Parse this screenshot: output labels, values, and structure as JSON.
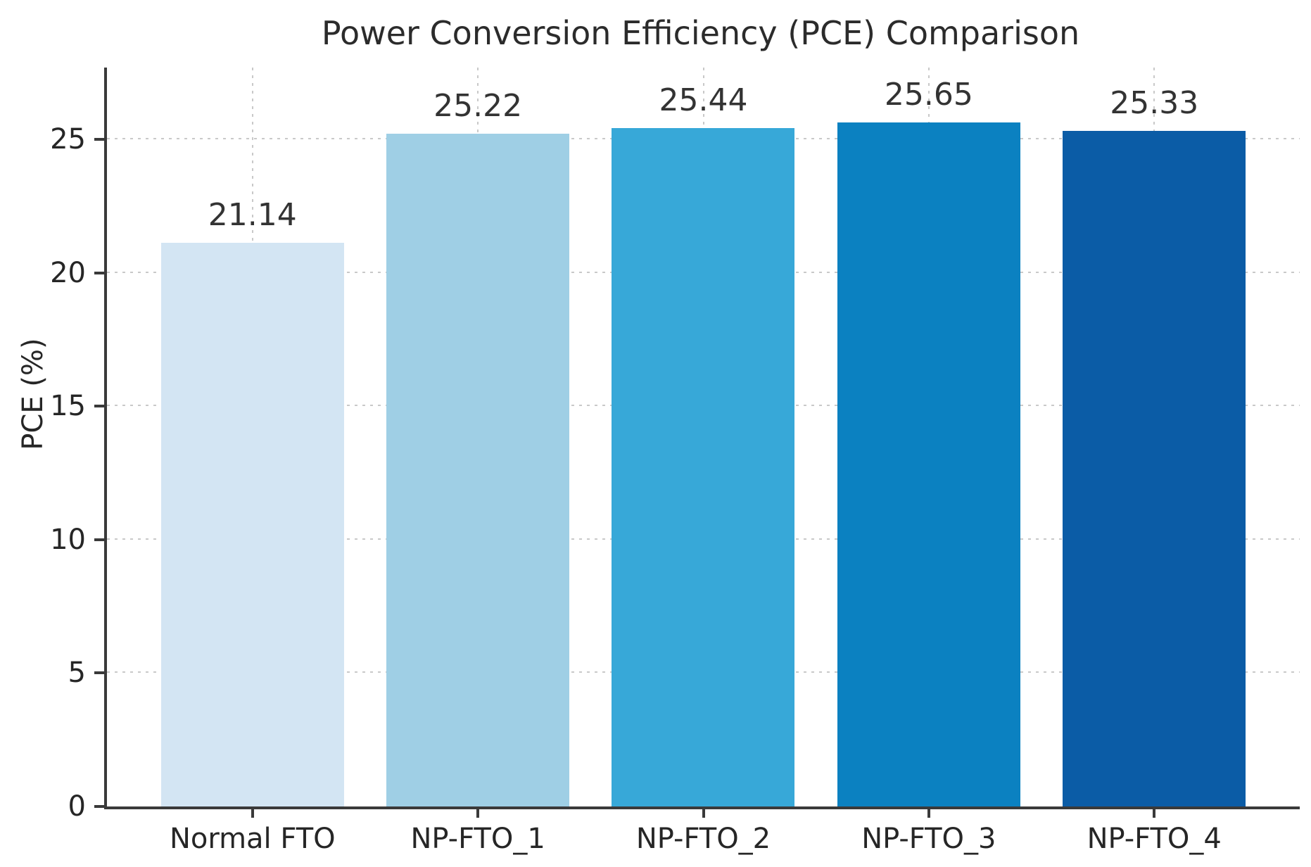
{
  "chart_data": {
    "type": "bar",
    "title": "Power Conversion Efficiency (PCE) Comparison",
    "categories": [
      "Normal FTO",
      "NP-FTO_1",
      "NP-FTO_2",
      "NP-FTO_3",
      "NP-FTO_4"
    ],
    "values": [
      21.14,
      25.22,
      25.44,
      25.65,
      25.33
    ],
    "bar_labels": [
      "21.14",
      "25.22",
      "25.44",
      "25.65",
      "25.33"
    ],
    "bar_colors": [
      "#d3e5f3",
      "#9fcfe5",
      "#37a8d8",
      "#0b81c1",
      "#0b5ca6"
    ],
    "xlabel": "",
    "ylabel": "PCE (%)",
    "ylim": [
      0,
      27.7
    ],
    "yticks": [
      0,
      5,
      10,
      15,
      20,
      25
    ],
    "grid": {
      "horizontal": true,
      "vertical": true,
      "style": "dotted"
    },
    "legend": null
  },
  "style": {
    "background": "#ffffff",
    "axis_color": "#3a3a3a",
    "grid_color": "#c9c9c9",
    "text_color": "#262626",
    "bar_label_color": "#333333"
  }
}
